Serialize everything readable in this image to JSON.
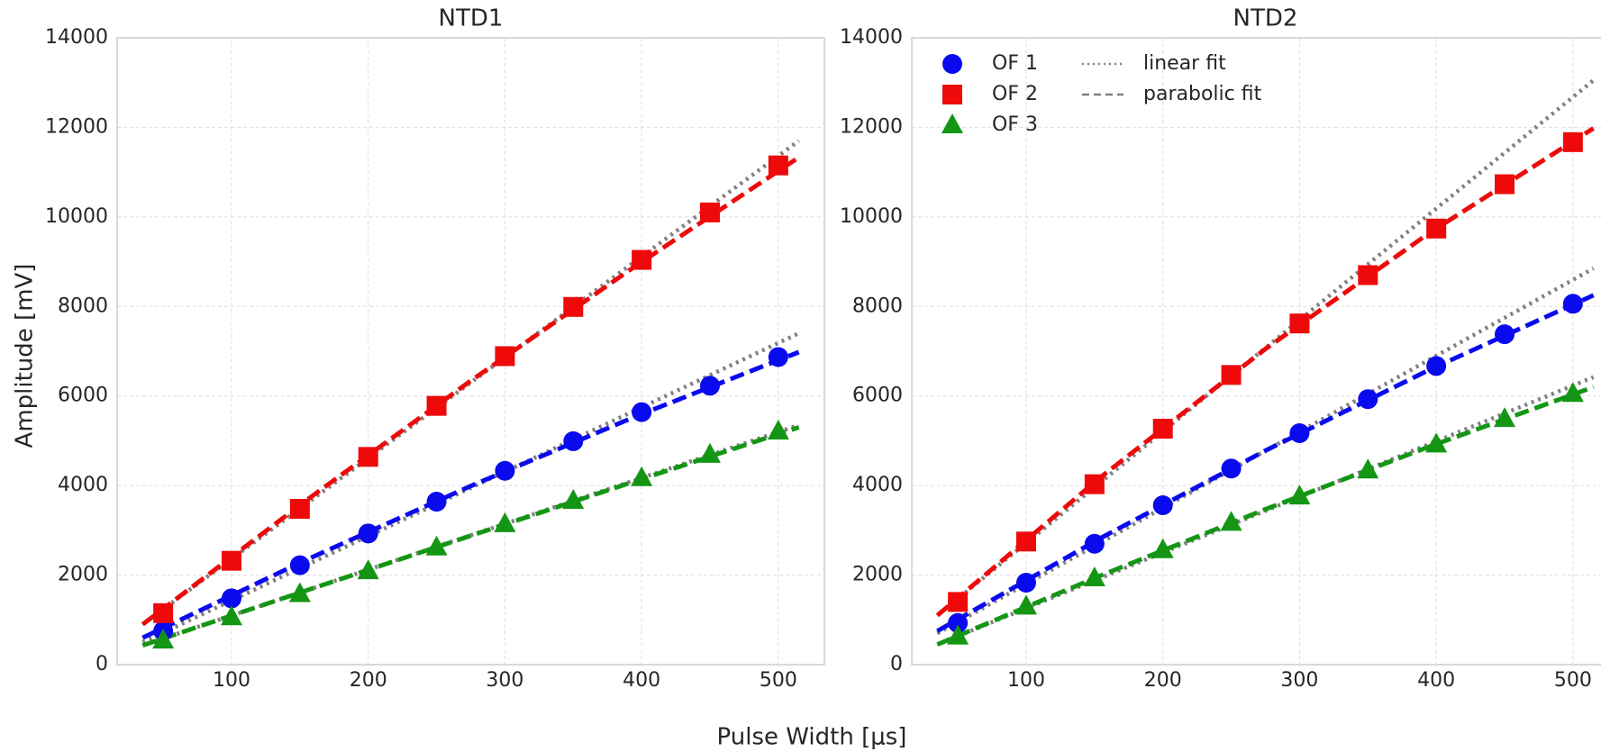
{
  "figure": {
    "xlabel": "Pulse Width [μs]",
    "ylabel": "Amplitude [mV]"
  },
  "chart_data": [
    {
      "type": "line",
      "title": "NTD1",
      "xlim": [
        16.3,
        533.7
      ],
      "ylim": [
        0,
        14000
      ],
      "xticks": [
        100,
        200,
        300,
        400,
        500
      ],
      "yticks": [
        0,
        2000,
        4000,
        6000,
        8000,
        10000,
        12000,
        14000
      ],
      "grid": true,
      "x": [
        50,
        100,
        150,
        200,
        250,
        300,
        350,
        400,
        450,
        500
      ],
      "series": [
        {
          "color": "#0a0aee",
          "marker": "o",
          "values": [
            750,
            1480,
            2220,
            2930,
            3640,
            4330,
            4990,
            5640,
            6230,
            6870
          ]
        },
        {
          "color": "#ee0a0a",
          "marker": "s",
          "values": [
            1150,
            2320,
            3480,
            4640,
            5780,
            6890,
            7990,
            9040,
            10100,
            11150
          ]
        },
        {
          "color": "#149614",
          "marker": "^",
          "values": [
            540,
            1060,
            1580,
            2090,
            2620,
            3140,
            3660,
            4170,
            4690,
            5210
          ]
        }
      ],
      "fits": [
        {
          "style": "dotted",
          "color": "#808080",
          "x": [
            35,
            515
          ],
          "curves": [
            [
              500,
              7400
            ],
            [
              900,
              11700
            ],
            [
              430,
              5350
            ]
          ]
        },
        {
          "style": "dashed",
          "x": [
            35,
            155,
            275,
            395,
            515
          ],
          "curves": [
            [
              600,
              2345,
              3990,
              5535,
              6980
            ],
            [
              900,
              3676,
              6340,
              8891,
              11330
            ],
            [
              430,
              1659,
              2880,
              4094,
              5300
            ]
          ]
        }
      ]
    },
    {
      "type": "line",
      "title": "NTD2",
      "xlim": [
        16.3,
        533.7
      ],
      "ylim": [
        0,
        14000
      ],
      "xticks": [
        100,
        200,
        300,
        400,
        500
      ],
      "yticks": [
        0,
        2000,
        4000,
        6000,
        8000,
        10000,
        12000,
        14000
      ],
      "grid": true,
      "legend": "upper left",
      "x": [
        50,
        100,
        150,
        200,
        250,
        300,
        350,
        400,
        450,
        500
      ],
      "series": [
        {
          "name": "OF 1",
          "color": "#0a0aee",
          "marker": "o",
          "values": [
            930,
            1830,
            2700,
            3560,
            4380,
            5170,
            5930,
            6670,
            7380,
            8060
          ]
        },
        {
          "name": "OF 2",
          "color": "#ee0a0a",
          "marker": "s",
          "values": [
            1400,
            2750,
            4030,
            5270,
            6470,
            7620,
            8700,
            9740,
            10730,
            11670
          ]
        },
        {
          "name": "OF 3",
          "color": "#149614",
          "marker": "^",
          "values": [
            630,
            1300,
            1930,
            2560,
            3170,
            3760,
            4340,
            4920,
            5490,
            6050
          ]
        }
      ],
      "fits": [
        {
          "name": "linear fit",
          "style": "dotted",
          "color": "#808080",
          "x": [
            35,
            515
          ],
          "curves": [
            [
              700,
              8850
            ],
            [
              1100,
              13050
            ],
            [
              450,
              6420
            ]
          ]
        },
        {
          "name": "parabolic fit",
          "style": "dashed",
          "x": [
            35,
            155,
            275,
            395,
            515
          ],
          "curves": [
            [
              750,
              2835,
              4780,
              6585,
              8250
            ],
            [
              1100,
              4200,
              7050,
              9642,
              11980
            ],
            [
              450,
              1996,
              3470,
              4871,
              6200
            ]
          ]
        }
      ]
    }
  ]
}
